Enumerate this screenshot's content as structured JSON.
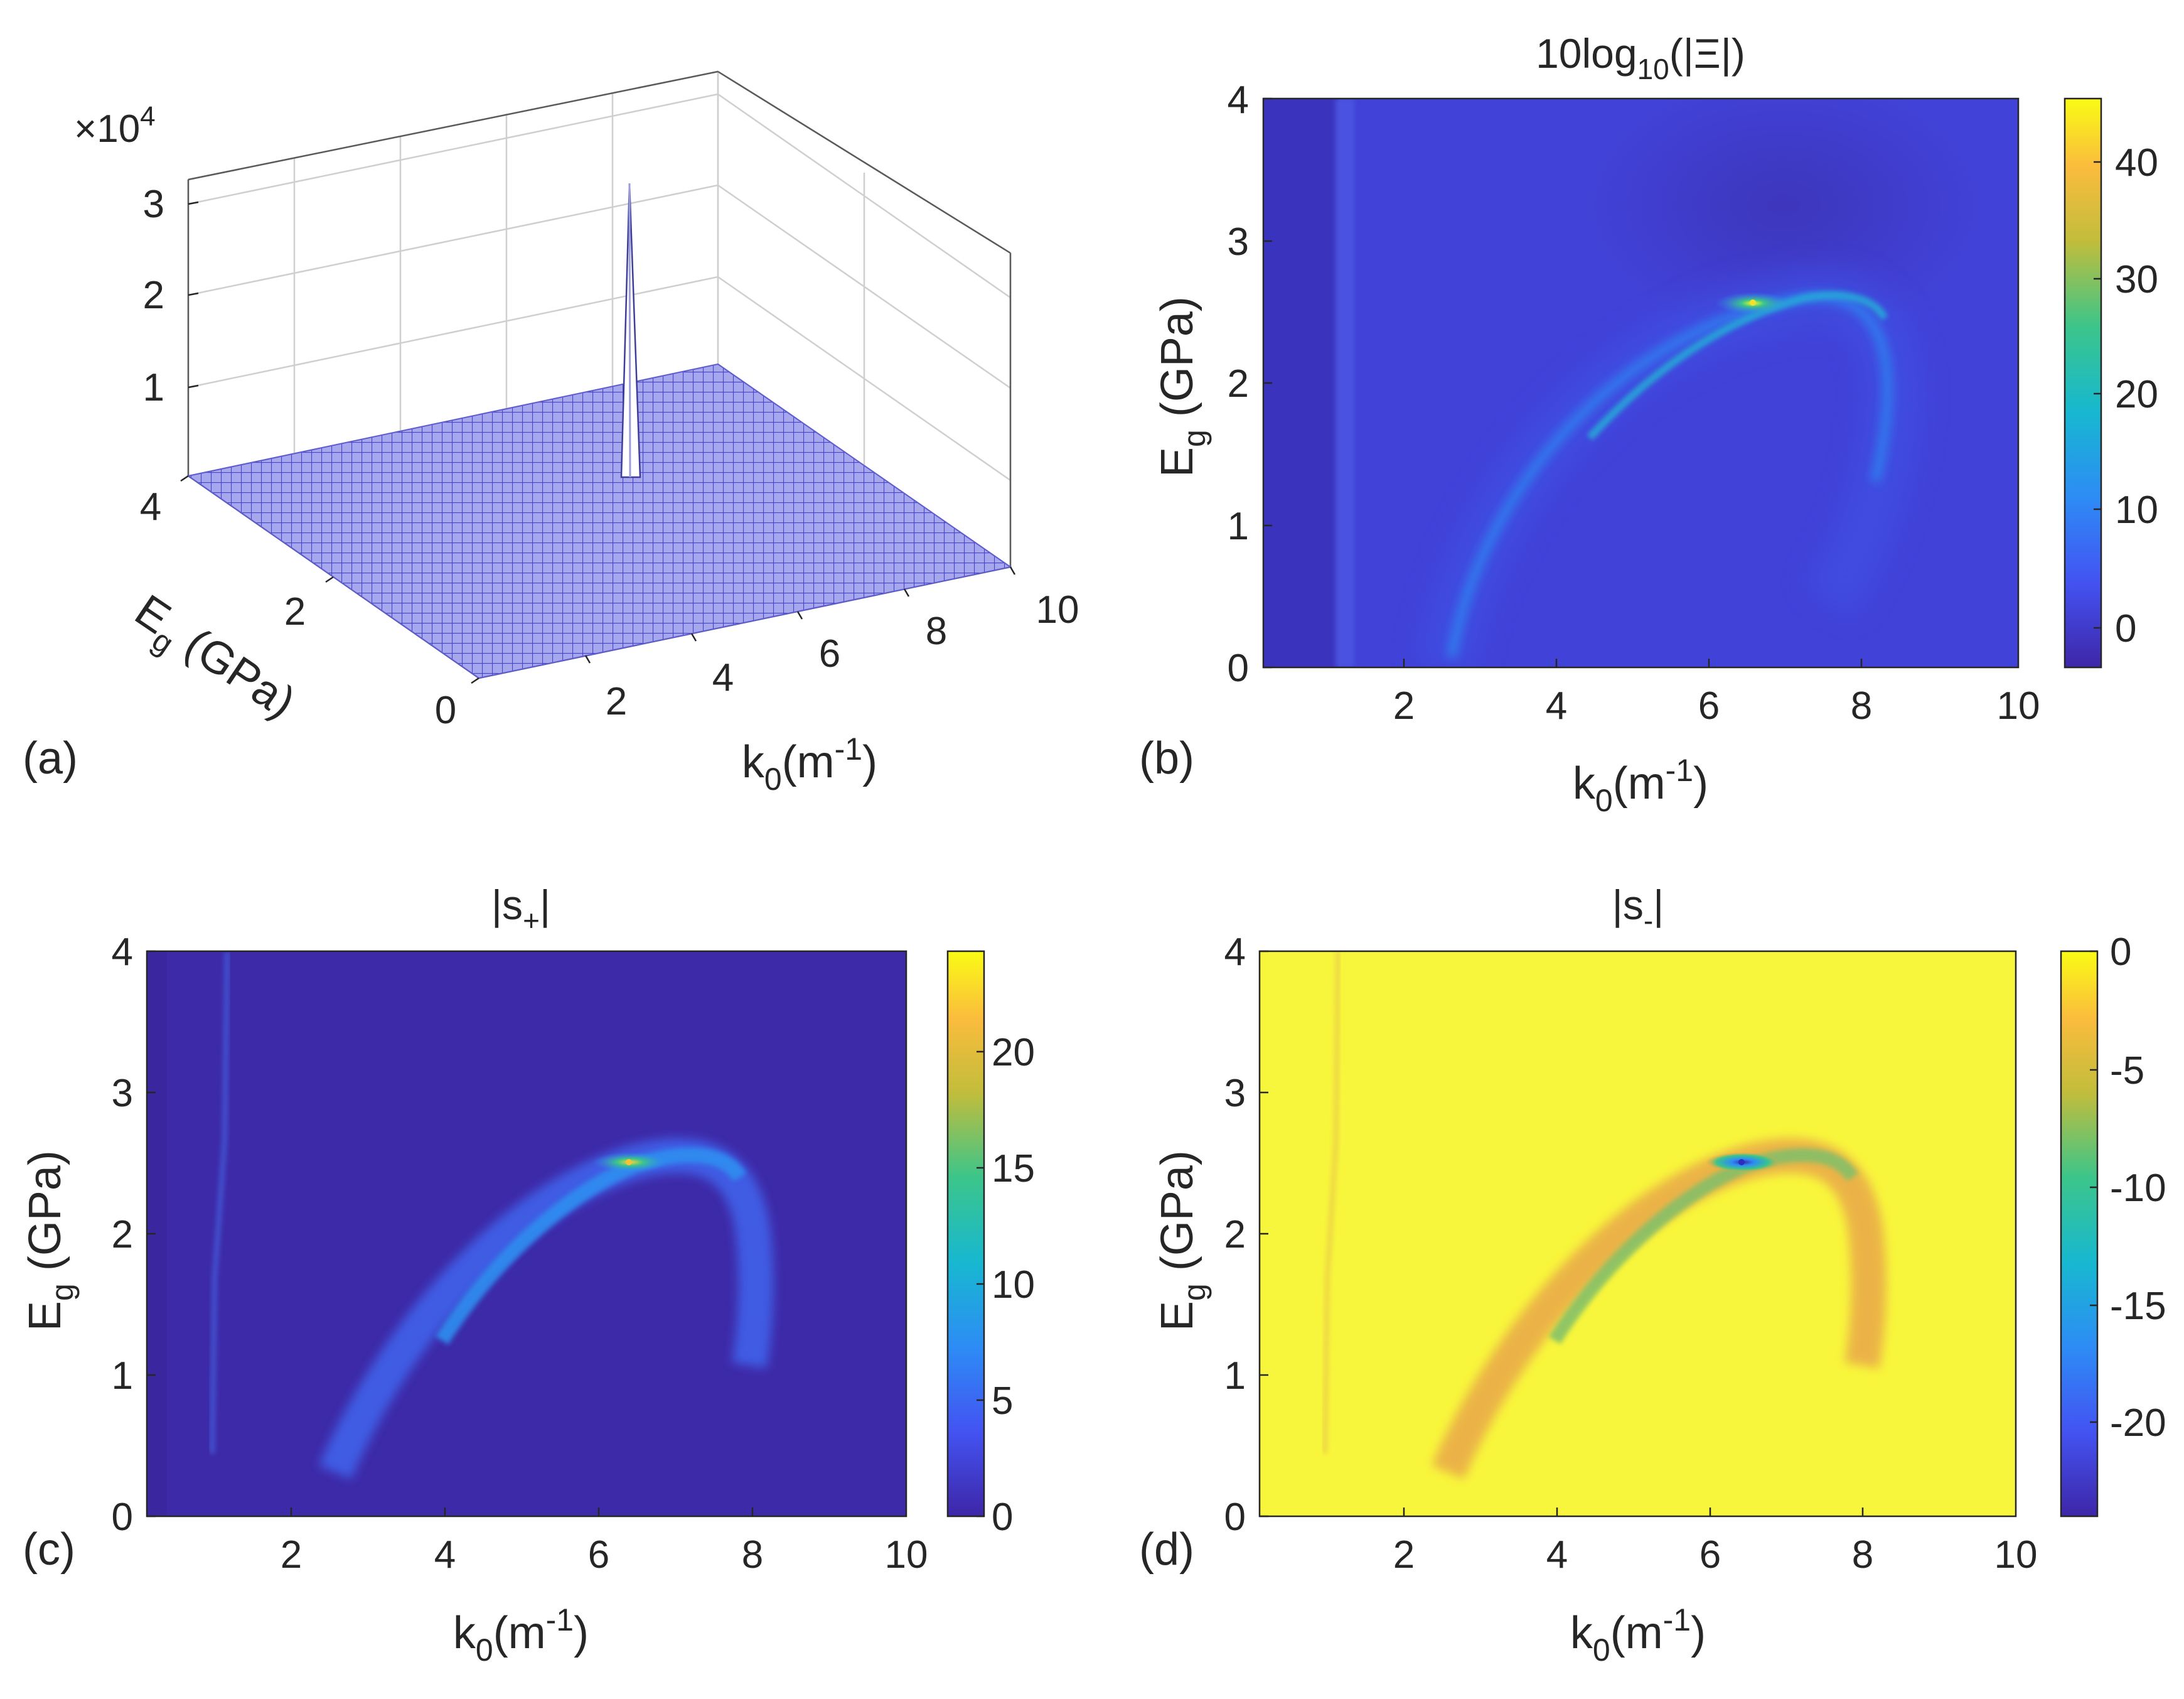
{
  "figure": {
    "panel_letters": [
      "(a)",
      "(b)",
      "(c)",
      "(d)"
    ]
  },
  "chart_data": [
    {
      "panel": "(a)",
      "type": "surface3d",
      "title": "",
      "exponent_label": "×10",
      "exponent_power": "4",
      "xlabel_main": "k",
      "xlabel_sub": "0",
      "xlabel_unit": "(m",
      "xlabel_sup": "-1",
      "xlabel_close": ")",
      "ylabel_main": "E",
      "ylabel_sub": "g",
      "ylabel_unit": " (GPa)",
      "x_ticks": [
        "2",
        "4",
        "6",
        "8",
        "10"
      ],
      "y_ticks": [
        "0",
        "2",
        "4"
      ],
      "z_ticks": [
        "1",
        "2",
        "3"
      ],
      "xlim": [
        0,
        10
      ],
      "ylim": [
        0,
        4
      ],
      "zlim": [
        0,
        35000
      ],
      "peak": {
        "k0": 6.4,
        "Eg": 2.55,
        "value": 32000
      },
      "baseline_value": 0,
      "surface_color": "#9a9ae6"
    },
    {
      "panel": "(b)",
      "type": "heatmap",
      "title_main": "10log",
      "title_sub": "10",
      "title_arg": "(|Ξ|)",
      "xlabel_main": "k",
      "xlabel_sub": "0",
      "xlabel_unit": "(m",
      "xlabel_sup": "-1",
      "xlabel_close": ")",
      "ylabel_main": "E",
      "ylabel_sub": "g",
      "ylabel_unit": " (GPa)",
      "x_ticks": [
        "2",
        "4",
        "6",
        "8",
        "10"
      ],
      "y_ticks": [
        "0",
        "1",
        "2",
        "3",
        "4"
      ],
      "xlim": [
        0.1,
        10
      ],
      "ylim": [
        0,
        4
      ],
      "colorbar_ticks": [
        "0",
        "10",
        "20",
        "30",
        "40"
      ],
      "colorbar_range": [
        -3,
        45
      ],
      "features": {
        "background_level": 2,
        "hotspot": {
          "k0": 6.4,
          "Eg": 2.55,
          "level": 40
        },
        "arc_ridge_level": 14,
        "vertical_line_k0": 1.0
      }
    },
    {
      "panel": "(c)",
      "type": "heatmap",
      "title_main": "|s",
      "title_sub": "+",
      "title_close": "|",
      "xlabel_main": "k",
      "xlabel_sub": "0",
      "xlabel_unit": "(m",
      "xlabel_sup": "-1",
      "xlabel_close": ")",
      "ylabel_main": "E",
      "ylabel_sub": "g",
      "ylabel_unit": " (GPa)",
      "x_ticks": [
        "2",
        "4",
        "6",
        "8",
        "10"
      ],
      "y_ticks": [
        "0",
        "1",
        "2",
        "3",
        "4"
      ],
      "xlim": [
        0.1,
        10
      ],
      "ylim": [
        0,
        4
      ],
      "colorbar_ticks": [
        "0",
        "5",
        "10",
        "15",
        "20"
      ],
      "colorbar_range": [
        0,
        24
      ],
      "features": {
        "background_level": 0,
        "hotspot": {
          "k0": 6.4,
          "Eg": 2.55,
          "level": 22
        },
        "arc_ridge_level": 5,
        "vertical_line_k0": 1.0
      }
    },
    {
      "panel": "(d)",
      "type": "heatmap",
      "title_main": "|s",
      "title_sub": "-",
      "title_close": "|",
      "xlabel_main": "k",
      "xlabel_sub": "0",
      "xlabel_unit": "(m",
      "xlabel_sup": "-1",
      "xlabel_close": ")",
      "ylabel_main": "E",
      "ylabel_sub": "g",
      "ylabel_unit": " (GPa)",
      "x_ticks": [
        "2",
        "4",
        "6",
        "8",
        "10"
      ],
      "y_ticks": [
        "0",
        "1",
        "2",
        "3",
        "4"
      ],
      "xlim": [
        0.1,
        10
      ],
      "ylim": [
        0,
        4
      ],
      "colorbar_ticks": [
        "0",
        "-5",
        "-10",
        "-15",
        "-20"
      ],
      "colorbar_range": [
        -24,
        0
      ],
      "features": {
        "background_level": 0,
        "hotspot": {
          "k0": 6.4,
          "Eg": 2.55,
          "level": -23
        },
        "arc_ridge_level": -3,
        "vertical_line_k0": 1.0
      }
    }
  ]
}
